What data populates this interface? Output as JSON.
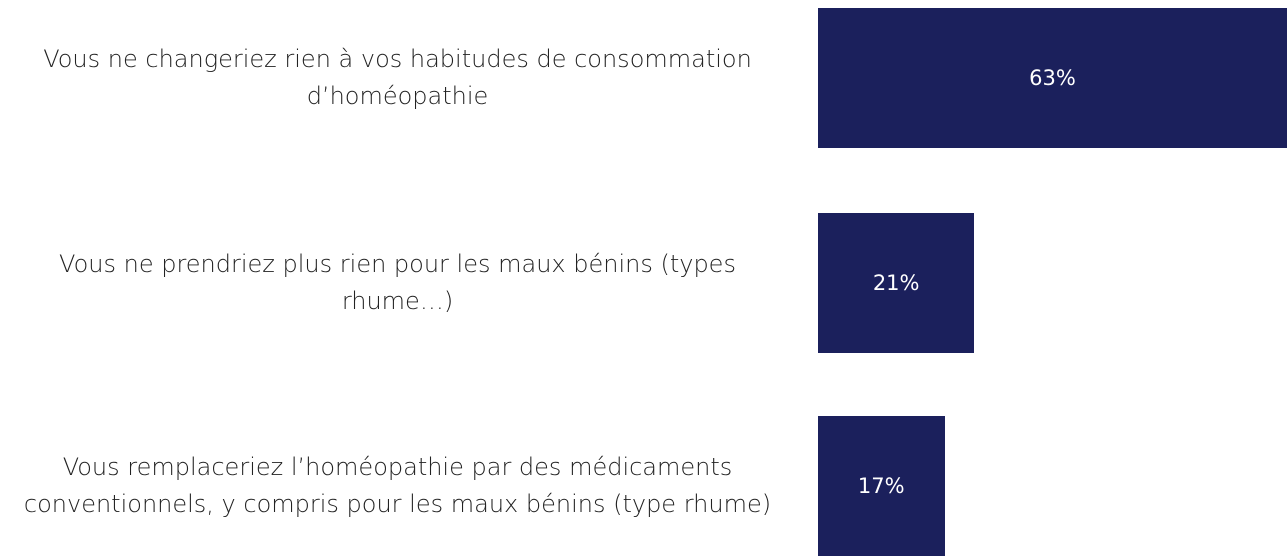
{
  "chart_data": {
    "type": "bar",
    "orientation": "horizontal",
    "categories": [
      "Vous ne changeriez rien à vos habitudes de consommation d’homéopathie",
      "Vous ne prendriez plus rien pour les maux bénins (types rhume…)",
      "Vous remplaceriez l’homéopathie par des médicaments conventionnels, y compris pour les maux bénins (type rhume)"
    ],
    "values": [
      63,
      21,
      17
    ],
    "value_labels": [
      "63%",
      "21%",
      "17%"
    ],
    "color": "#1b205c",
    "xlim": [
      0,
      63
    ]
  }
}
